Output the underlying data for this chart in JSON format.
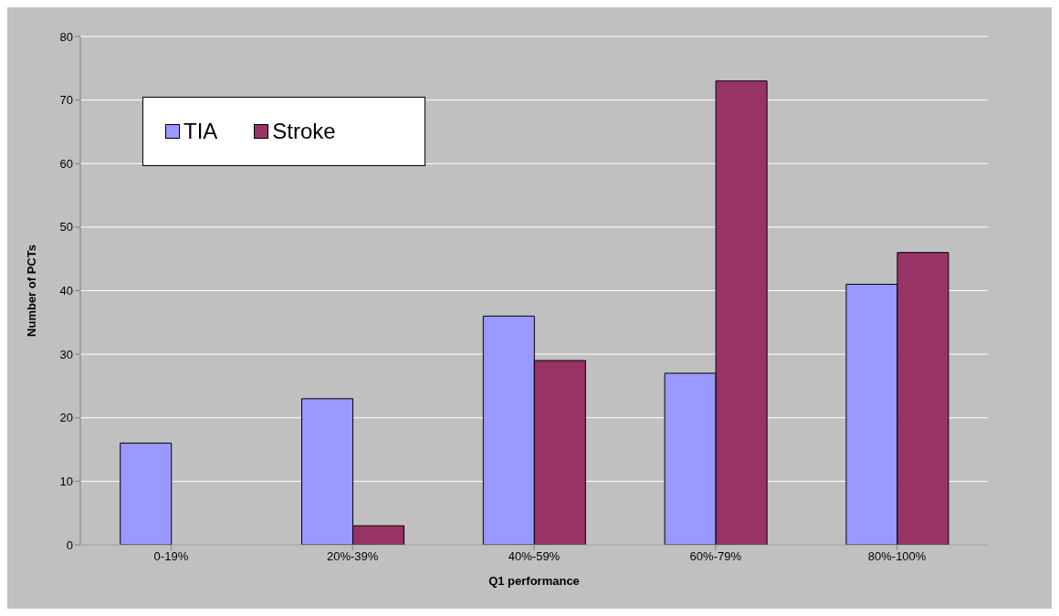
{
  "chart_data": {
    "type": "bar",
    "xlabel": "Q1 performance",
    "ylabel": "Number of PCTs",
    "categories": [
      "0-19%",
      "20%-39%",
      "40%-59%",
      "60%-79%",
      "80%-100%"
    ],
    "series": [
      {
        "name": "TIA",
        "color": "#9999ff",
        "values": [
          16,
          23,
          36,
          27,
          41
        ]
      },
      {
        "name": "Stroke",
        "color": "#993366",
        "values": [
          0,
          3,
          29,
          73,
          46
        ]
      }
    ],
    "ylim": [
      0,
      80
    ],
    "yticks": [
      0,
      10,
      20,
      30,
      40,
      50,
      60,
      70,
      80
    ],
    "grid": "y",
    "legend": "top left"
  }
}
